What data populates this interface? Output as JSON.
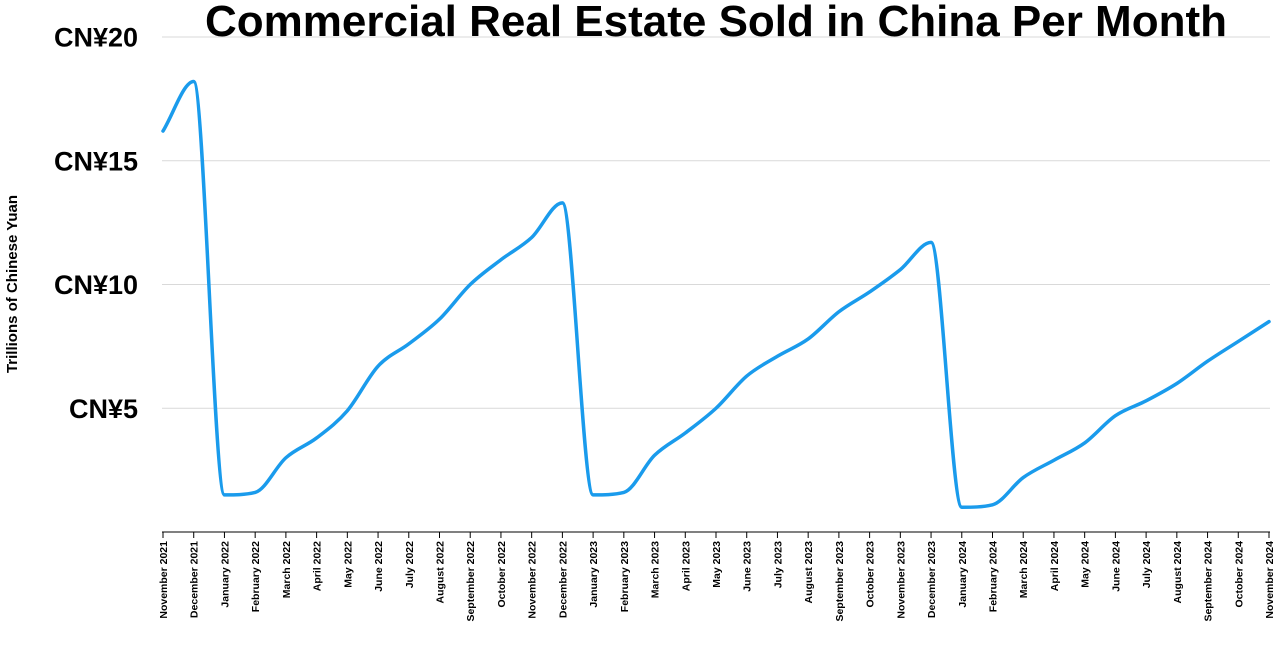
{
  "chart_data": {
    "type": "line",
    "title": "Commercial Real Estate Sold in China Per Month",
    "ylabel": "Trillions of Chinese Yuan",
    "xlabel": "",
    "ylim": [
      0,
      20
    ],
    "y_ticks": [
      {
        "value": 5,
        "label": "CN¥5"
      },
      {
        "value": 10,
        "label": "CN¥10"
      },
      {
        "value": 15,
        "label": "CN¥15"
      },
      {
        "value": 20,
        "label": "CN¥20"
      }
    ],
    "grid": true,
    "legend": "none",
    "line_color": "#1a9bec",
    "categories": [
      "November 2021",
      "December 2021",
      "January 2022",
      "February 2022",
      "March 2022",
      "April 2022",
      "May 2022",
      "June 2022",
      "July 2022",
      "August 2022",
      "September 2022",
      "October 2022",
      "November 2022",
      "December 2022",
      "January 2023",
      "February 2023",
      "March 2023",
      "April 2023",
      "May 2023",
      "June 2023",
      "July 2023",
      "August 2023",
      "September 2023",
      "October 2023",
      "November 2023",
      "December 2023",
      "January 2024",
      "February 2024",
      "March 2024",
      "April 2024",
      "May 2024",
      "June 2024",
      "July 2024",
      "August 2024",
      "September 2024",
      "October 2024",
      "November 2024"
    ],
    "series": [
      {
        "values": [
          16.2,
          18.2,
          1.5,
          1.6,
          3.0,
          3.8,
          4.9,
          6.7,
          7.6,
          8.6,
          10.0,
          11.0,
          11.9,
          13.3,
          1.5,
          1.6,
          3.1,
          4.0,
          5.0,
          6.3,
          7.1,
          7.8,
          8.9,
          9.7,
          10.6,
          11.7,
          1.0,
          1.1,
          2.2,
          2.9,
          3.6,
          4.7,
          5.3,
          6.0,
          6.9,
          7.7,
          8.5
        ]
      }
    ]
  }
}
